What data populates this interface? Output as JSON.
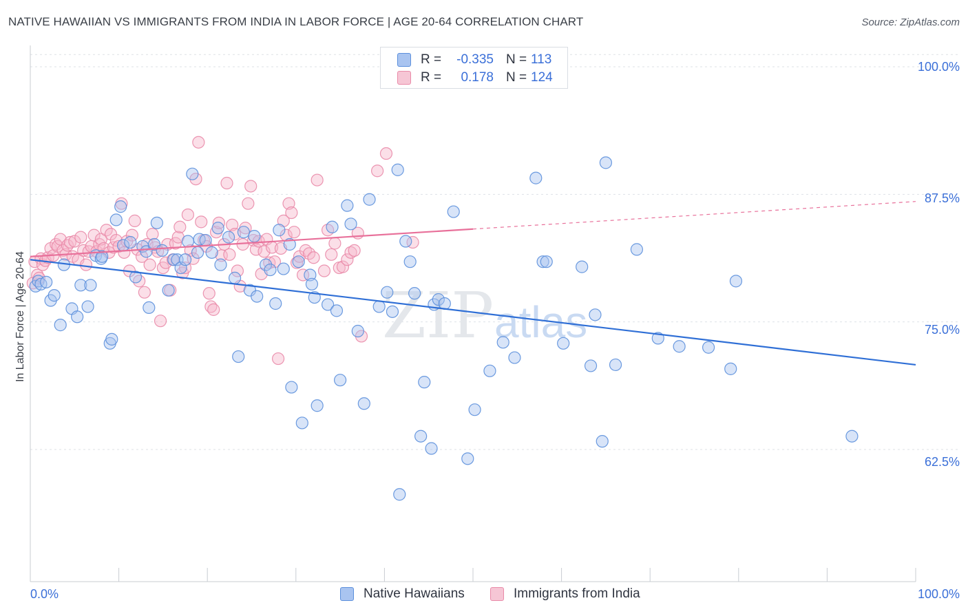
{
  "header": {
    "title": "NATIVE HAWAIIAN VS IMMIGRANTS FROM INDIA IN LABOR FORCE | AGE 20-64 CORRELATION CHART",
    "source": "Source: ZipAtlas.com"
  },
  "legend": {
    "rows": [
      {
        "r_label": "R =",
        "r_value": "-0.335",
        "n_label": "N =",
        "n_value": "113"
      },
      {
        "r_label": "R =",
        "r_value": "0.178",
        "n_label": "N =",
        "n_value": "124"
      }
    ]
  },
  "bottom_legend": {
    "items": [
      "Native Hawaiians",
      "Immigrants from India"
    ]
  },
  "watermark": {
    "zip": "ZIP",
    "atlas": "atlas"
  },
  "colors": {
    "blue_fill": "#a9c4f0",
    "blue_stroke": "#5b8fdc",
    "blue_line": "#2f6fd6",
    "pink_fill": "#f6b8cb",
    "pink_stroke": "#e98aa8",
    "pink_line": "#e8709a",
    "axis_text": "#3a6fd8",
    "grid": "#dde1e6"
  },
  "chart_data": {
    "type": "scatter",
    "title": "NATIVE HAWAIIAN VS IMMIGRANTS FROM INDIA IN LABOR FORCE | AGE 20-64 CORRELATION CHART",
    "xlabel": "",
    "ylabel": "In Labor Force | Age 20-64",
    "xlim": [
      0,
      100
    ],
    "ylim": [
      50,
      102
    ],
    "x_tick_labels": [
      "0.0%",
      "100.0%"
    ],
    "y_ticks": [
      62.5,
      75.0,
      87.5,
      100.0
    ],
    "y_tick_labels": [
      "62.5%",
      "75.0%",
      "87.5%",
      "100.0%"
    ],
    "grid": true,
    "series": [
      {
        "name": "Native Hawaiians",
        "r": -0.335,
        "n": 113,
        "trend": {
          "x": [
            0,
            100
          ],
          "y": [
            81.1,
            70.8
          ]
        },
        "points": [
          [
            0.6,
            78.5
          ],
          [
            0.9,
            79.0
          ],
          [
            1.2,
            78.7
          ],
          [
            1.8,
            78.9
          ],
          [
            2.3,
            77.1
          ],
          [
            2.7,
            77.6
          ],
          [
            3.4,
            74.7
          ],
          [
            3.8,
            80.6
          ],
          [
            4.7,
            76.3
          ],
          [
            5.3,
            75.5
          ],
          [
            5.7,
            78.6
          ],
          [
            6.5,
            76.5
          ],
          [
            6.8,
            78.6
          ],
          [
            7.4,
            81.5
          ],
          [
            8.0,
            81.2
          ],
          [
            8.1,
            81.4
          ],
          [
            9.0,
            72.9
          ],
          [
            9.2,
            73.3
          ],
          [
            9.7,
            85.0
          ],
          [
            10.2,
            86.3
          ],
          [
            10.5,
            82.5
          ],
          [
            11.3,
            82.8
          ],
          [
            11.9,
            79.4
          ],
          [
            12.7,
            82.4
          ],
          [
            13.1,
            81.9
          ],
          [
            13.4,
            76.4
          ],
          [
            14.0,
            82.6
          ],
          [
            14.3,
            84.7
          ],
          [
            14.9,
            82.0
          ],
          [
            15.6,
            78.1
          ],
          [
            16.2,
            81.1
          ],
          [
            16.6,
            81.1
          ],
          [
            17.0,
            80.3
          ],
          [
            17.5,
            81.1
          ],
          [
            17.8,
            82.9
          ],
          [
            18.3,
            89.5
          ],
          [
            18.9,
            81.8
          ],
          [
            19.1,
            83.1
          ],
          [
            19.8,
            83.0
          ],
          [
            20.5,
            81.8
          ],
          [
            21.2,
            84.2
          ],
          [
            21.5,
            80.6
          ],
          [
            22.4,
            83.3
          ],
          [
            23.1,
            79.3
          ],
          [
            23.5,
            71.6
          ],
          [
            24.1,
            83.8
          ],
          [
            24.8,
            78.1
          ],
          [
            25.3,
            83.4
          ],
          [
            25.6,
            77.5
          ],
          [
            26.6,
            80.6
          ],
          [
            27.1,
            80.1
          ],
          [
            27.7,
            76.8
          ],
          [
            28.1,
            84.0
          ],
          [
            28.6,
            80.2
          ],
          [
            29.3,
            82.6
          ],
          [
            29.5,
            68.6
          ],
          [
            30.3,
            80.9
          ],
          [
            30.7,
            65.1
          ],
          [
            31.6,
            79.6
          ],
          [
            31.8,
            78.7
          ],
          [
            32.1,
            77.4
          ],
          [
            32.4,
            66.8
          ],
          [
            33.6,
            76.7
          ],
          [
            34.1,
            84.3
          ],
          [
            34.6,
            76.1
          ],
          [
            35.0,
            69.3
          ],
          [
            35.8,
            86.4
          ],
          [
            36.2,
            84.6
          ],
          [
            37.0,
            74.1
          ],
          [
            37.7,
            67.0
          ],
          [
            38.3,
            87.0
          ],
          [
            39.4,
            76.5
          ],
          [
            40.3,
            77.9
          ],
          [
            40.9,
            76.0
          ],
          [
            41.5,
            89.9
          ],
          [
            41.7,
            58.1
          ],
          [
            42.4,
            82.9
          ],
          [
            42.9,
            80.9
          ],
          [
            43.4,
            77.8
          ],
          [
            44.1,
            63.8
          ],
          [
            44.5,
            69.1
          ],
          [
            45.3,
            62.6
          ],
          [
            45.6,
            76.7
          ],
          [
            46.1,
            77.2
          ],
          [
            46.8,
            76.8
          ],
          [
            47.8,
            85.8
          ],
          [
            49.4,
            61.6
          ],
          [
            50.2,
            66.4
          ],
          [
            51.9,
            70.2
          ],
          [
            53.4,
            73.0
          ],
          [
            54.7,
            71.5
          ],
          [
            57.1,
            89.1
          ],
          [
            57.9,
            80.9
          ],
          [
            58.3,
            80.9
          ],
          [
            60.2,
            72.9
          ],
          [
            62.3,
            80.4
          ],
          [
            63.3,
            70.7
          ],
          [
            63.8,
            75.7
          ],
          [
            64.6,
            63.3
          ],
          [
            65.0,
            90.6
          ],
          [
            66.1,
            70.8
          ],
          [
            68.5,
            82.1
          ],
          [
            70.9,
            73.4
          ],
          [
            73.3,
            72.6
          ],
          [
            76.6,
            72.5
          ],
          [
            79.1,
            70.4
          ],
          [
            79.7,
            79.0
          ],
          [
            92.8,
            63.8
          ]
        ]
      },
      {
        "name": "Immigrants from India",
        "r": 0.178,
        "n": 124,
        "trend": {
          "x": [
            0,
            50
          ],
          "y": [
            81.4,
            84.1
          ]
        },
        "trend_extension": {
          "x": [
            50,
            100
          ],
          "y": [
            84.1,
            86.8
          ]
        },
        "points": [
          [
            0.3,
            78.8
          ],
          [
            0.5,
            80.9
          ],
          [
            0.8,
            79.6
          ],
          [
            1.0,
            79.3
          ],
          [
            1.2,
            81.2
          ],
          [
            1.4,
            80.6
          ],
          [
            1.7,
            81.0
          ],
          [
            2.0,
            81.3
          ],
          [
            2.3,
            82.2
          ],
          [
            2.6,
            81.5
          ],
          [
            2.9,
            82.6
          ],
          [
            3.1,
            82.4
          ],
          [
            3.4,
            83.1
          ],
          [
            3.7,
            82.0
          ],
          [
            4.0,
            81.6
          ],
          [
            4.2,
            82.5
          ],
          [
            4.5,
            82.8
          ],
          [
            4.8,
            81.4
          ],
          [
            5.0,
            82.9
          ],
          [
            5.4,
            81.1
          ],
          [
            5.7,
            83.3
          ],
          [
            6.0,
            82.0
          ],
          [
            6.3,
            80.6
          ],
          [
            6.6,
            81.9
          ],
          [
            6.9,
            82.4
          ],
          [
            7.2,
            83.5
          ],
          [
            7.5,
            81.9
          ],
          [
            7.8,
            82.6
          ],
          [
            8.0,
            83.1
          ],
          [
            8.3,
            82.2
          ],
          [
            8.6,
            84.0
          ],
          [
            8.9,
            81.8
          ],
          [
            9.1,
            83.6
          ],
          [
            9.4,
            82.3
          ],
          [
            9.7,
            83.0
          ],
          [
            10.0,
            82.4
          ],
          [
            10.3,
            86.6
          ],
          [
            10.6,
            81.8
          ],
          [
            10.9,
            82.9
          ],
          [
            11.2,
            80.0
          ],
          [
            11.5,
            83.5
          ],
          [
            11.8,
            84.9
          ],
          [
            12.1,
            82.1
          ],
          [
            12.3,
            79.0
          ],
          [
            12.6,
            81.4
          ],
          [
            12.9,
            77.9
          ],
          [
            13.2,
            82.6
          ],
          [
            13.5,
            80.6
          ],
          [
            13.8,
            83.6
          ],
          [
            14.1,
            82.3
          ],
          [
            14.4,
            81.9
          ],
          [
            14.7,
            75.1
          ],
          [
            15.0,
            80.3
          ],
          [
            15.3,
            80.8
          ],
          [
            15.5,
            82.6
          ],
          [
            15.8,
            78.1
          ],
          [
            16.1,
            81.1
          ],
          [
            16.4,
            82.7
          ],
          [
            16.7,
            83.3
          ],
          [
            16.9,
            84.3
          ],
          [
            17.2,
            79.8
          ],
          [
            17.5,
            80.3
          ],
          [
            17.8,
            85.5
          ],
          [
            18.1,
            82.0
          ],
          [
            18.4,
            81.2
          ],
          [
            18.7,
            89.0
          ],
          [
            19.0,
            92.6
          ],
          [
            19.3,
            84.8
          ],
          [
            19.6,
            83.0
          ],
          [
            19.9,
            82.4
          ],
          [
            20.2,
            77.8
          ],
          [
            20.4,
            76.5
          ],
          [
            20.7,
            76.2
          ],
          [
            21.0,
            83.8
          ],
          [
            21.3,
            84.7
          ],
          [
            21.6,
            81.5
          ],
          [
            21.9,
            82.6
          ],
          [
            22.2,
            88.6
          ],
          [
            22.5,
            81.6
          ],
          [
            22.8,
            84.5
          ],
          [
            23.1,
            83.6
          ],
          [
            23.4,
            80.0
          ],
          [
            23.7,
            78.5
          ],
          [
            24.0,
            82.6
          ],
          [
            24.3,
            84.2
          ],
          [
            24.6,
            86.6
          ],
          [
            24.9,
            88.3
          ],
          [
            25.2,
            83.0
          ],
          [
            25.5,
            82.1
          ],
          [
            25.8,
            82.9
          ],
          [
            26.1,
            79.7
          ],
          [
            26.4,
            81.9
          ],
          [
            26.7,
            83.1
          ],
          [
            27.0,
            80.8
          ],
          [
            27.3,
            82.3
          ],
          [
            27.6,
            80.9
          ],
          [
            28.0,
            71.4
          ],
          [
            28.3,
            82.2
          ],
          [
            28.6,
            84.9
          ],
          [
            28.9,
            83.5
          ],
          [
            29.2,
            86.6
          ],
          [
            29.5,
            85.7
          ],
          [
            29.8,
            83.8
          ],
          [
            30.1,
            80.8
          ],
          [
            30.4,
            81.4
          ],
          [
            30.8,
            79.6
          ],
          [
            31.1,
            82.0
          ],
          [
            31.5,
            81.7
          ],
          [
            32.0,
            81.3
          ],
          [
            32.4,
            88.9
          ],
          [
            33.2,
            80.0
          ],
          [
            33.6,
            84.0
          ],
          [
            34.0,
            81.6
          ],
          [
            34.4,
            82.7
          ],
          [
            34.9,
            80.3
          ],
          [
            35.3,
            80.4
          ],
          [
            35.8,
            81.1
          ],
          [
            36.2,
            81.8
          ],
          [
            36.6,
            82.0
          ],
          [
            37.0,
            83.7
          ],
          [
            37.4,
            73.6
          ],
          [
            39.2,
            89.8
          ],
          [
            40.2,
            91.5
          ],
          [
            43.2,
            82.8
          ]
        ]
      }
    ]
  }
}
